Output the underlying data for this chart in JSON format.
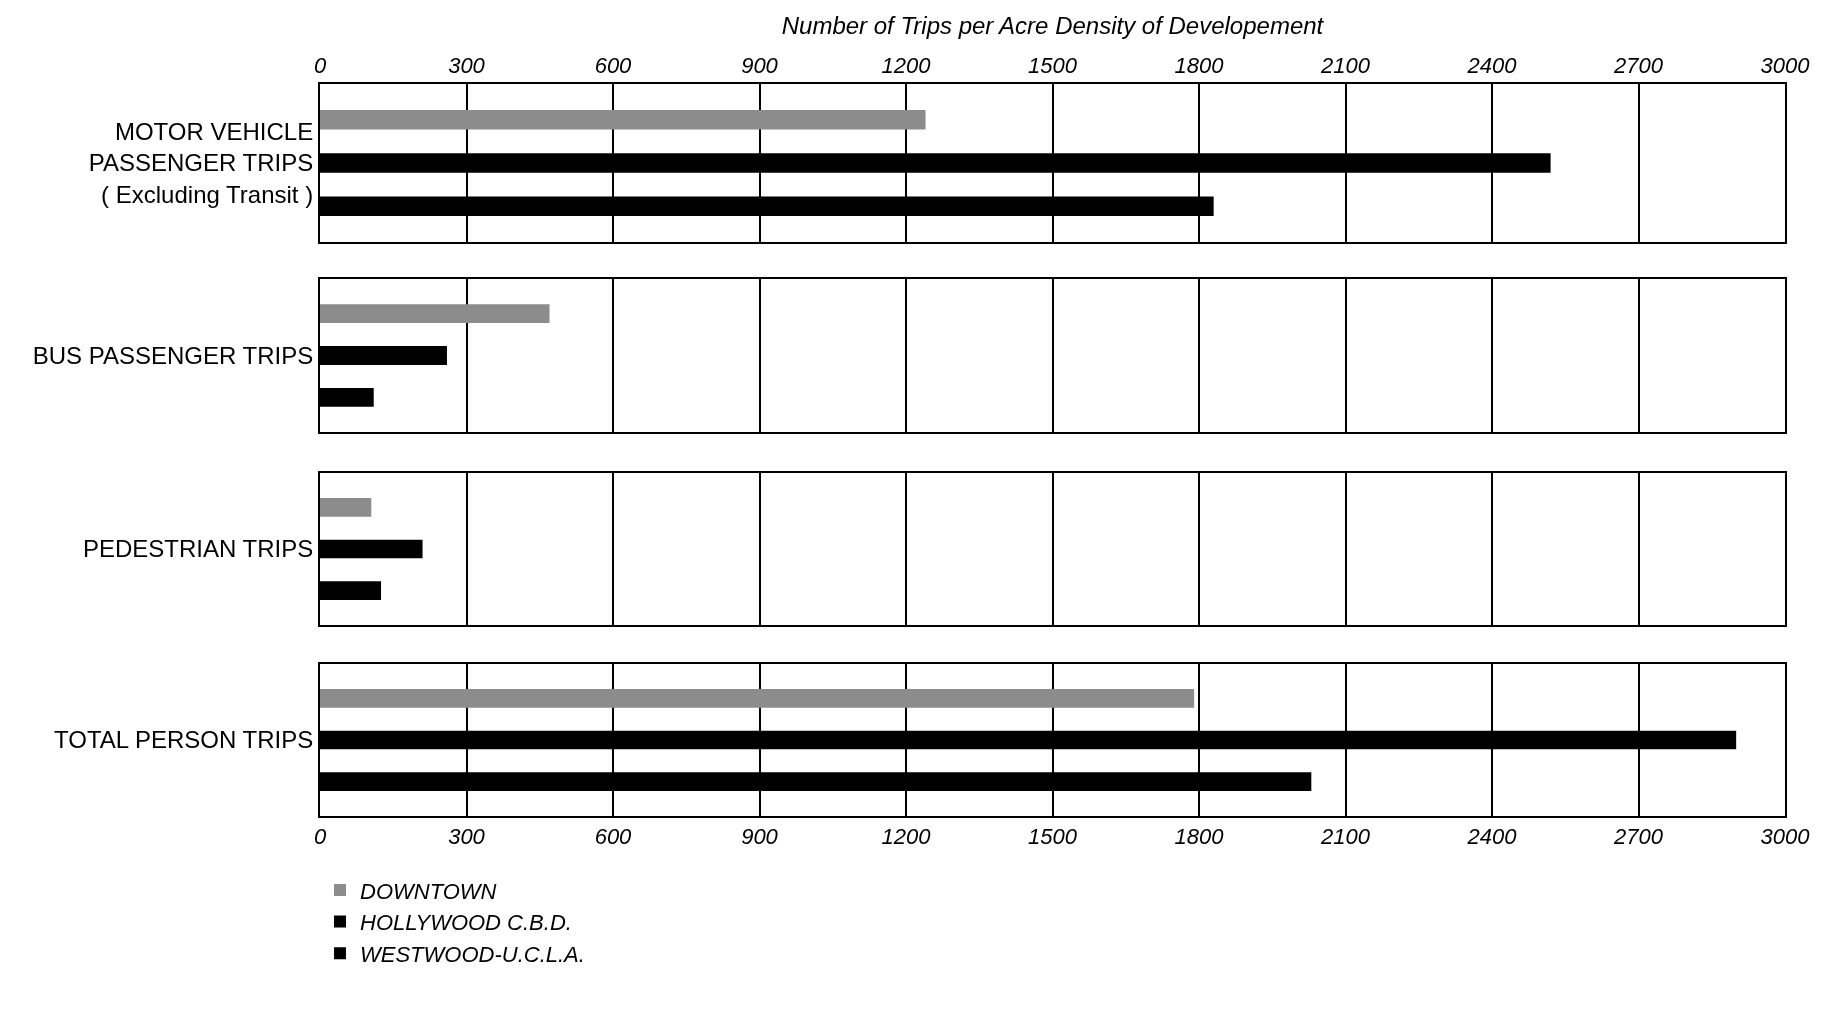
{
  "chart_data": [
    {
      "type": "bar",
      "orientation": "horizontal",
      "xlabel": "Number of Trips per Acre Density of Developement",
      "categories": [
        "MOTOR VEHICLE\nPASSENGER TRIPS\n( Excluding Transit )"
      ],
      "xlim": [
        0,
        3000
      ],
      "xticks": [
        0,
        300,
        600,
        900,
        1200,
        1500,
        1800,
        2100,
        2400,
        2700,
        3000
      ],
      "grid": "x",
      "series": [
        {
          "color": "#8c8c8c",
          "values": [
            1240
          ]
        },
        {
          "color": "#000000",
          "values": [
            2520
          ]
        },
        {
          "color": "#000000",
          "values": [
            1830
          ]
        }
      ]
    },
    {
      "type": "bar",
      "orientation": "horizontal",
      "categories": [
        "BUS PASSENGER TRIPS"
      ],
      "xlim": [
        0,
        3000
      ],
      "xticks": [
        0,
        300,
        600,
        900,
        1200,
        1500,
        1800,
        2100,
        2400,
        2700,
        3000
      ],
      "grid": "x",
      "tick_labels": "y",
      "series": [
        {
          "color": "#8c8c8c",
          "values": [
            470
          ]
        },
        {
          "color": "#000000",
          "values": [
            260
          ]
        },
        {
          "color": "#000000",
          "values": [
            110
          ]
        }
      ]
    },
    {
      "type": "bar",
      "orientation": "horizontal",
      "categories": [
        "PEDESTRIAN TRIPS"
      ],
      "xlim": [
        0,
        3000
      ],
      "xticks": [
        0,
        300,
        600,
        900,
        1200,
        1500,
        1800,
        2100,
        2400,
        2700,
        3000
      ],
      "grid": "x",
      "tick_labels": "y",
      "series": [
        {
          "color": "#8c8c8c",
          "values": [
            105
          ]
        },
        {
          "color": "#000000",
          "values": [
            210
          ]
        },
        {
          "color": "#000000",
          "values": [
            125
          ]
        }
      ]
    },
    {
      "type": "bar",
      "orientation": "horizontal",
      "categories": [
        "TOTAL PERSON TRIPS"
      ],
      "xlim": [
        0,
        3000
      ],
      "xticks": [
        0,
        300,
        600,
        900,
        1200,
        1500,
        1800,
        2100,
        2400,
        2700,
        3000
      ],
      "grid": "x",
      "legend": "bottom",
      "series": [
        {
          "name": "DOWNTOWN",
          "color": "#8c8c8c",
          "values": [
            1790
          ]
        },
        {
          "name": "HOLLYWOOD C.B.D.",
          "color": "#000000",
          "values": [
            2900
          ]
        },
        {
          "name": "WESTWOOD-U.C.L.A.",
          "color": "#000000",
          "values": [
            2030
          ]
        }
      ]
    }
  ]
}
